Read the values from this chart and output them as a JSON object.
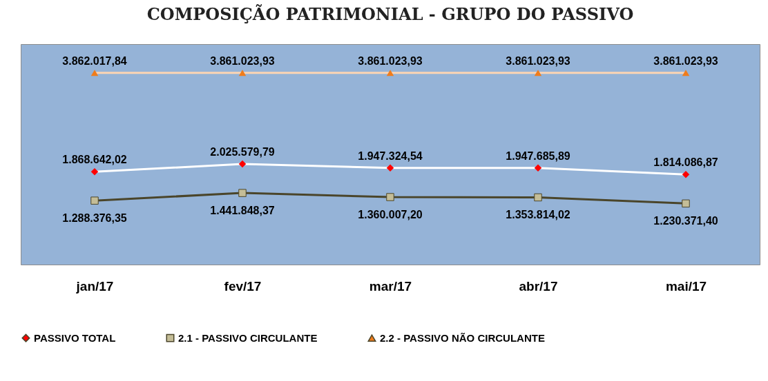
{
  "chart_data": {
    "type": "line",
    "title": "COMPOSIÇÃO PATRIMONIAL - GRUPO DO PASSIVO",
    "categories": [
      "jan/17",
      "fev/17",
      "mar/17",
      "abr/17",
      "mai/17"
    ],
    "series": [
      {
        "name": "PASSIVO TOTAL",
        "color": "#ff0000",
        "marker": "diamond",
        "values": [
          1868642.02,
          2025579.79,
          1947324.54,
          1947685.89,
          1814086.87
        ],
        "value_labels": [
          "1.868.642,02",
          "2.025.579,79",
          "1.947.324,54",
          "1.947.685,89",
          "1.814.086,87"
        ]
      },
      {
        "name": "2.1 - PASSIVO CIRCULANTE",
        "color": "#c4bd97",
        "marker": "square",
        "values": [
          1288376.35,
          1441848.37,
          1360007.2,
          1353814.02,
          1230371.4
        ],
        "value_labels": [
          "1.288.376,35",
          "1.441.848,37",
          "1.360.007,20",
          "1.353.814,02",
          "1.230.371,40"
        ]
      },
      {
        "name": "2.2 - PASSIVO NÃO CIRCULANTE",
        "color": "#f07c1b",
        "marker": "triangle",
        "values": [
          3862017.84,
          3861023.93,
          3861023.93,
          3861023.93,
          3861023.93
        ],
        "value_labels": [
          "3.862.017,84",
          "3.861.023,93",
          "3.861.023,93",
          "3.861.023,93",
          "3.861.023,93"
        ]
      }
    ],
    "legend": "bottom",
    "grid": false
  }
}
